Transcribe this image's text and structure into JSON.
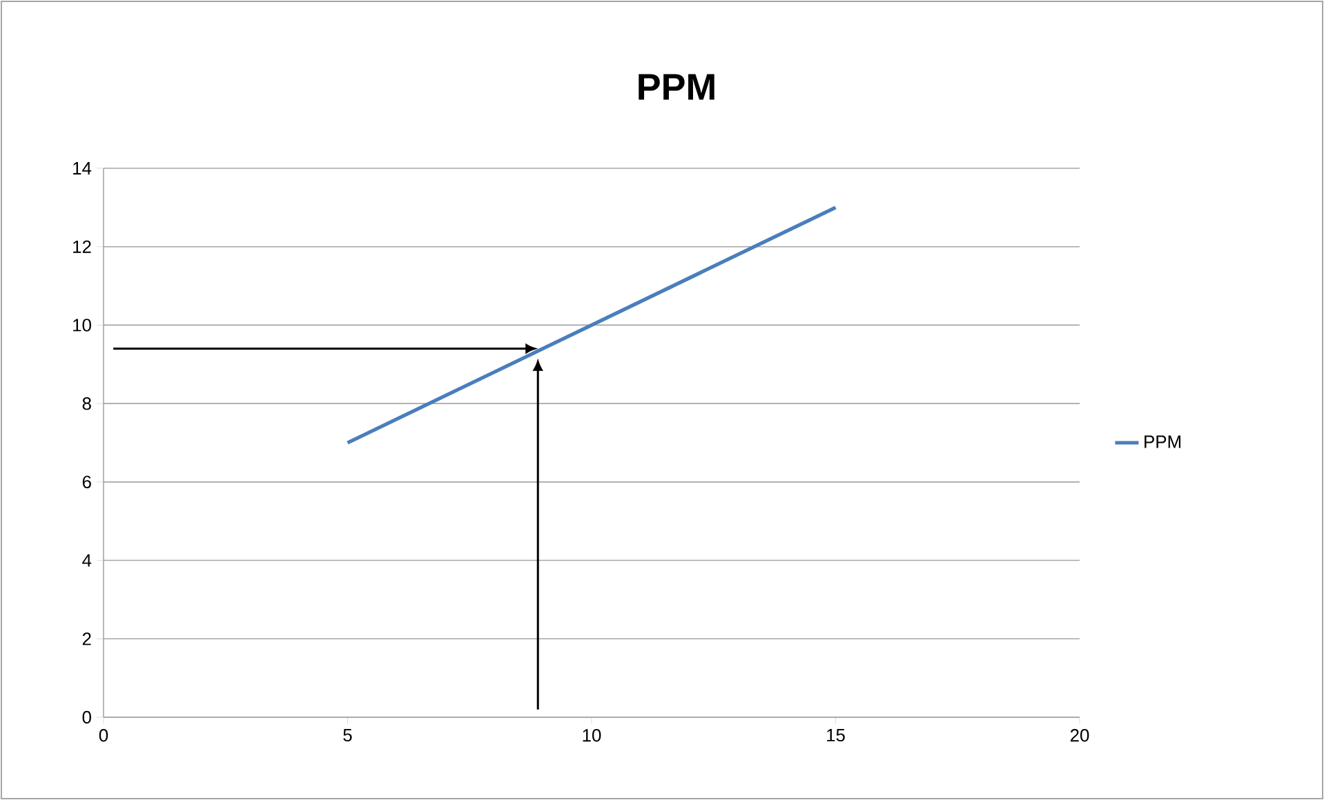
{
  "chart_data": {
    "type": "line",
    "title": "PPM",
    "x": [
      5,
      15
    ],
    "series": [
      {
        "name": "PPM",
        "color": "#4a7ebb",
        "values": [
          7,
          13
        ]
      }
    ],
    "xlim": [
      0,
      20
    ],
    "xticks": [
      0,
      5,
      10,
      15,
      20
    ],
    "ylim": [
      0,
      14
    ],
    "yticks": [
      0,
      2,
      4,
      6,
      8,
      10,
      12,
      14
    ],
    "grid": "y",
    "legend": "right",
    "marker": "none",
    "line_style": "solid",
    "ref_lines": [
      {
        "axis": "y",
        "value": 9.4,
        "color": "#000000"
      },
      {
        "axis": "x",
        "value": 8.9,
        "color": "#000000"
      }
    ]
  }
}
